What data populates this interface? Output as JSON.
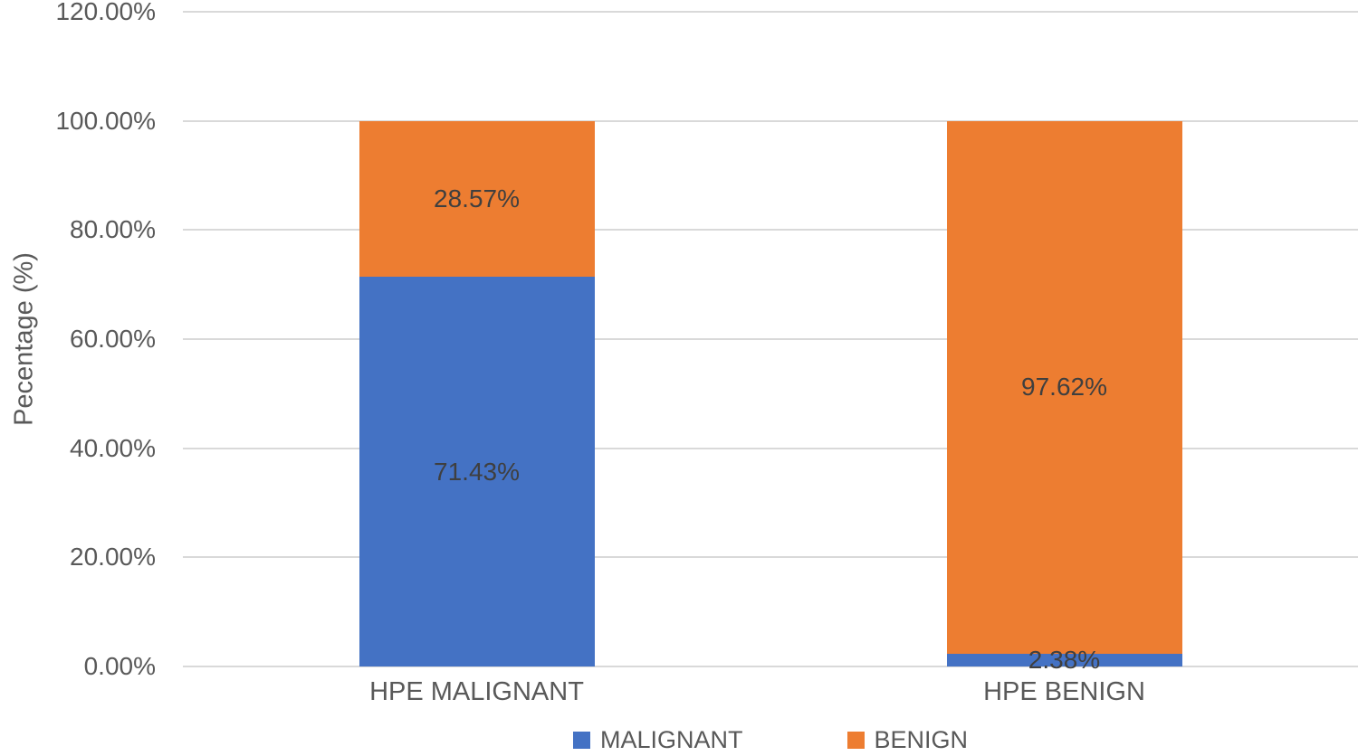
{
  "chart_data": {
    "type": "bar",
    "stacked": true,
    "title": "",
    "xlabel": "",
    "ylabel": "Pecentage (%)",
    "categories": [
      "HPE MALIGNANT",
      "HPE BENIGN"
    ],
    "series": [
      {
        "name": "MALIGNANT",
        "color": "#4472c4",
        "values": [
          71.43,
          2.38
        ],
        "labels": [
          "71.43%",
          "2.38%"
        ]
      },
      {
        "name": "BENIGN",
        "color": "#ed7d31",
        "values": [
          28.57,
          97.62
        ],
        "labels": [
          "28.57%",
          "97.62%"
        ]
      }
    ],
    "ylim": [
      0,
      120
    ],
    "yticks": [
      0,
      20,
      40,
      60,
      80,
      100,
      120
    ],
    "ytick_labels": [
      "0.00%",
      "20.00%",
      "40.00%",
      "60.00%",
      "80.00%",
      "100.00%",
      "120.00%"
    ],
    "grid": true,
    "legend_position": "bottom",
    "colors": {
      "gridline": "#d9d9d9",
      "tick_text": "#595959",
      "data_label_text": "#3f3f3f",
      "background": "#ffffff"
    }
  }
}
